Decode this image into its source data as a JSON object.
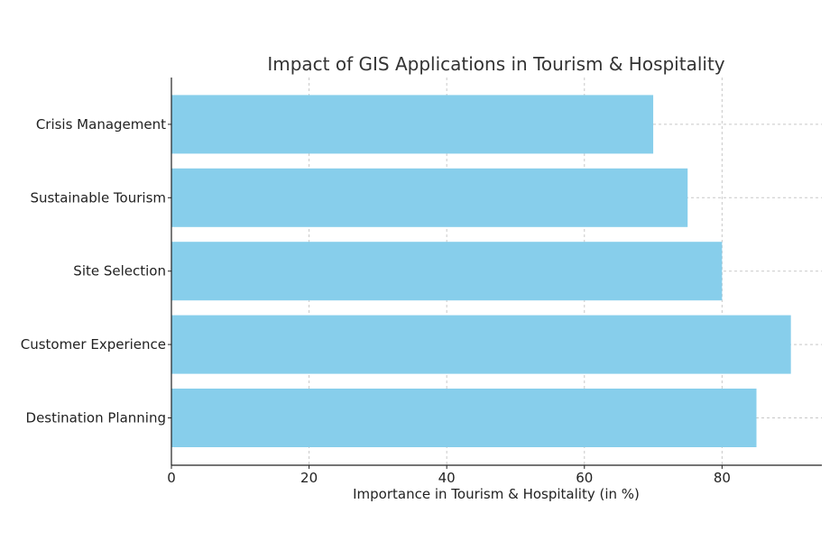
{
  "chart_data": {
    "type": "bar",
    "orientation": "horizontal",
    "title": "Impact of GIS Applications in Tourism & Hospitality",
    "xlabel": "Importance in Tourism & Hospitality (in %)",
    "ylabel": "",
    "categories": [
      "Destination Planning",
      "Customer Experience",
      "Site Selection",
      "Sustainable Tourism",
      "Crisis Management"
    ],
    "values": [
      85,
      90,
      80,
      75,
      70
    ],
    "xlim": [
      0,
      94.5
    ],
    "xticks": [
      0,
      20,
      40,
      60,
      80
    ],
    "grid": true,
    "bar_color": "#87CEEB"
  }
}
